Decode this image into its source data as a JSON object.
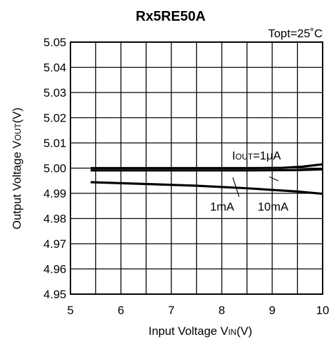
{
  "chart_data": {
    "type": "line",
    "title": "Rx5RE50A",
    "condition": "Topt=25˚C",
    "xlabel": {
      "main": "Input Voltage V",
      "sub": "IN",
      "unit": "(V)"
    },
    "ylabel": {
      "main": "Output Voltage V",
      "sub": "OUT",
      "unit": "(V)"
    },
    "xlim": [
      5,
      10
    ],
    "ylim": [
      4.95,
      5.05
    ],
    "xticks": [
      "5",
      "6",
      "7",
      "8",
      "9",
      "10"
    ],
    "yticks": [
      "5.05",
      "5.04",
      "5.03",
      "5.02",
      "5.01",
      "5.00",
      "4.99",
      "4.98",
      "4.97",
      "4.96",
      "4.95"
    ],
    "grid": true,
    "series": [
      {
        "name": "IOUT=1μA",
        "x": [
          5.4,
          7.0,
          8.5,
          9.2,
          9.6,
          10.0
        ],
        "y": [
          5.0,
          5.0,
          5.0,
          5.0001,
          5.0006,
          5.0015
        ]
      },
      {
        "name": "1mA",
        "x": [
          5.4,
          7.0,
          8.5,
          9.5,
          10.0
        ],
        "y": [
          4.9991,
          4.9991,
          4.9991,
          4.9992,
          4.9995
        ]
      },
      {
        "name": "10mA",
        "x": [
          5.4,
          6.5,
          7.5,
          8.5,
          9.5,
          10.0
        ],
        "y": [
          4.9944,
          4.9937,
          4.993,
          4.992,
          4.9907,
          4.9898
        ]
      }
    ],
    "annotations": {
      "iout_label": {
        "main": "I",
        "sub": "OUT",
        "rest": "=1μA"
      },
      "label_1ma": "1mA",
      "label_10ma": "10mA"
    }
  }
}
